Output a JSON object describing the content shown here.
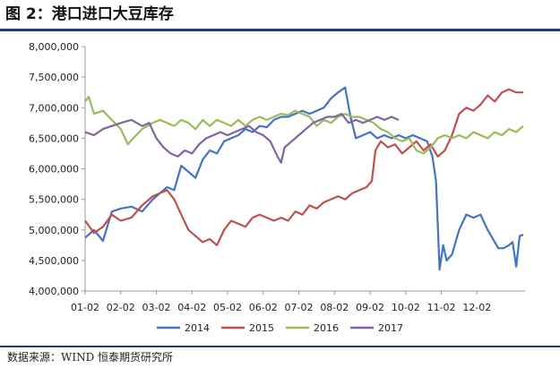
{
  "title": "图 2：港口进口大豆库存",
  "source": "数据来源：WIND  恒泰期货研究所",
  "chart_data": {
    "type": "line",
    "title": "",
    "xlabel": "",
    "ylabel": "",
    "categories": [
      "01-02",
      "02-02",
      "03-02",
      "04-02",
      "05-02",
      "06-02",
      "07-02",
      "08-02",
      "09-02",
      "10-02",
      "11-02",
      "12-02"
    ],
    "ylim": [
      4000000,
      8000000
    ],
    "yticks": [
      "4,000,000",
      "4,500,000",
      "5,000,000",
      "5,500,000",
      "6,000,000",
      "6,500,000",
      "7,000,000",
      "7,500,000",
      "8,000,000"
    ],
    "legend_position": "bottom",
    "grid": false,
    "series": [
      {
        "name": "2014",
        "color": "#4472C4",
        "values": [
          [
            0,
            4870000
          ],
          [
            0.25,
            5000000
          ],
          [
            0.5,
            4820000
          ],
          [
            0.75,
            5300000
          ],
          [
            1.0,
            5350000
          ],
          [
            1.3,
            5380000
          ],
          [
            1.6,
            5300000
          ],
          [
            1.9,
            5500000
          ],
          [
            2.1,
            5600000
          ],
          [
            2.3,
            5700000
          ],
          [
            2.5,
            5650000
          ],
          [
            2.7,
            6050000
          ],
          [
            2.9,
            5950000
          ],
          [
            3.1,
            5850000
          ],
          [
            3.3,
            6150000
          ],
          [
            3.5,
            6300000
          ],
          [
            3.7,
            6250000
          ],
          [
            3.9,
            6450000
          ],
          [
            4.1,
            6500000
          ],
          [
            4.3,
            6550000
          ],
          [
            4.5,
            6650000
          ],
          [
            4.7,
            6600000
          ],
          [
            4.9,
            6700000
          ],
          [
            5.1,
            6680000
          ],
          [
            5.3,
            6800000
          ],
          [
            5.5,
            6850000
          ],
          [
            5.7,
            6850000
          ],
          [
            5.9,
            6900000
          ],
          [
            6.1,
            6950000
          ],
          [
            6.3,
            6900000
          ],
          [
            6.5,
            6950000
          ],
          [
            6.7,
            7000000
          ],
          [
            6.9,
            7150000
          ],
          [
            7.1,
            7250000
          ],
          [
            7.3,
            7330000
          ],
          [
            7.45,
            6850000
          ],
          [
            7.6,
            6500000
          ],
          [
            7.8,
            6550000
          ],
          [
            8.0,
            6600000
          ],
          [
            8.2,
            6500000
          ],
          [
            8.4,
            6550000
          ],
          [
            8.6,
            6500000
          ],
          [
            8.8,
            6550000
          ],
          [
            9.0,
            6500000
          ],
          [
            9.2,
            6550000
          ],
          [
            9.4,
            6500000
          ],
          [
            9.6,
            6450000
          ],
          [
            9.75,
            6200000
          ],
          [
            9.85,
            5800000
          ],
          [
            9.95,
            4350000
          ],
          [
            10.05,
            4750000
          ],
          [
            10.15,
            4500000
          ],
          [
            10.3,
            4600000
          ],
          [
            10.5,
            5000000
          ],
          [
            10.7,
            5250000
          ],
          [
            10.9,
            5200000
          ],
          [
            11.1,
            5250000
          ],
          [
            11.3,
            5000000
          ],
          [
            11.5,
            4800000
          ],
          [
            11.6,
            4700000
          ],
          [
            11.75,
            4700000
          ],
          [
            11.9,
            4750000
          ],
          [
            12.0,
            4800000
          ],
          [
            12.1,
            4400000
          ],
          [
            12.2,
            4900000
          ],
          [
            12.3,
            4920000
          ]
        ]
      },
      {
        "name": "2015",
        "color": "#C0504D",
        "values": [
          [
            0,
            5150000
          ],
          [
            0.25,
            4950000
          ],
          [
            0.5,
            5050000
          ],
          [
            0.75,
            5250000
          ],
          [
            1.0,
            5150000
          ],
          [
            1.3,
            5200000
          ],
          [
            1.6,
            5400000
          ],
          [
            1.9,
            5550000
          ],
          [
            2.1,
            5600000
          ],
          [
            2.3,
            5650000
          ],
          [
            2.5,
            5500000
          ],
          [
            2.7,
            5250000
          ],
          [
            2.9,
            5000000
          ],
          [
            3.1,
            4900000
          ],
          [
            3.3,
            4800000
          ],
          [
            3.5,
            4850000
          ],
          [
            3.7,
            4750000
          ],
          [
            3.9,
            5000000
          ],
          [
            4.1,
            5150000
          ],
          [
            4.3,
            5100000
          ],
          [
            4.5,
            5050000
          ],
          [
            4.7,
            5200000
          ],
          [
            4.9,
            5250000
          ],
          [
            5.1,
            5200000
          ],
          [
            5.3,
            5150000
          ],
          [
            5.5,
            5200000
          ],
          [
            5.7,
            5150000
          ],
          [
            5.9,
            5300000
          ],
          [
            6.1,
            5250000
          ],
          [
            6.3,
            5400000
          ],
          [
            6.5,
            5350000
          ],
          [
            6.7,
            5450000
          ],
          [
            6.9,
            5500000
          ],
          [
            7.1,
            5550000
          ],
          [
            7.3,
            5500000
          ],
          [
            7.5,
            5600000
          ],
          [
            7.7,
            5650000
          ],
          [
            7.9,
            5700000
          ],
          [
            8.05,
            5800000
          ],
          [
            8.15,
            6300000
          ],
          [
            8.3,
            6450000
          ],
          [
            8.5,
            6350000
          ],
          [
            8.7,
            6400000
          ],
          [
            8.9,
            6250000
          ],
          [
            9.1,
            6350000
          ],
          [
            9.3,
            6450000
          ],
          [
            9.5,
            6300000
          ],
          [
            9.7,
            6400000
          ],
          [
            9.9,
            6200000
          ],
          [
            10.1,
            6300000
          ],
          [
            10.3,
            6550000
          ],
          [
            10.5,
            6900000
          ],
          [
            10.7,
            7000000
          ],
          [
            10.9,
            6950000
          ],
          [
            11.1,
            7050000
          ],
          [
            11.3,
            7200000
          ],
          [
            11.5,
            7100000
          ],
          [
            11.7,
            7250000
          ],
          [
            11.9,
            7300000
          ],
          [
            12.1,
            7250000
          ],
          [
            12.3,
            7250000
          ]
        ]
      },
      {
        "name": "2016",
        "color": "#9BBB59",
        "values": [
          [
            0,
            7100000
          ],
          [
            0.1,
            7180000
          ],
          [
            0.25,
            6900000
          ],
          [
            0.5,
            6950000
          ],
          [
            0.75,
            6800000
          ],
          [
            1.0,
            6650000
          ],
          [
            1.2,
            6400000
          ],
          [
            1.35,
            6500000
          ],
          [
            1.6,
            6650000
          ],
          [
            1.9,
            6750000
          ],
          [
            2.1,
            6800000
          ],
          [
            2.3,
            6750000
          ],
          [
            2.5,
            6700000
          ],
          [
            2.7,
            6800000
          ],
          [
            2.9,
            6750000
          ],
          [
            3.1,
            6650000
          ],
          [
            3.3,
            6800000
          ],
          [
            3.5,
            6700000
          ],
          [
            3.7,
            6800000
          ],
          [
            3.9,
            6750000
          ],
          [
            4.1,
            6700000
          ],
          [
            4.3,
            6800000
          ],
          [
            4.5,
            6700000
          ],
          [
            4.7,
            6800000
          ],
          [
            4.9,
            6850000
          ],
          [
            5.1,
            6800000
          ],
          [
            5.3,
            6850000
          ],
          [
            5.5,
            6900000
          ],
          [
            5.7,
            6880000
          ],
          [
            5.9,
            6950000
          ],
          [
            6.1,
            6900000
          ],
          [
            6.3,
            6850000
          ],
          [
            6.5,
            6700000
          ],
          [
            6.7,
            6800000
          ],
          [
            6.9,
            6750000
          ],
          [
            7.1,
            6850000
          ],
          [
            7.3,
            6900000
          ],
          [
            7.5,
            6850000
          ],
          [
            7.7,
            6850000
          ],
          [
            7.9,
            6800000
          ],
          [
            8.1,
            6750000
          ],
          [
            8.3,
            6650000
          ],
          [
            8.5,
            6600000
          ],
          [
            8.7,
            6500000
          ],
          [
            8.9,
            6450000
          ],
          [
            9.1,
            6500000
          ],
          [
            9.3,
            6300000
          ],
          [
            9.5,
            6250000
          ],
          [
            9.7,
            6350000
          ],
          [
            9.9,
            6500000
          ],
          [
            10.1,
            6550000
          ],
          [
            10.3,
            6500000
          ],
          [
            10.5,
            6550000
          ],
          [
            10.7,
            6500000
          ],
          [
            10.9,
            6600000
          ],
          [
            11.1,
            6550000
          ],
          [
            11.3,
            6500000
          ],
          [
            11.5,
            6600000
          ],
          [
            11.7,
            6550000
          ],
          [
            11.9,
            6650000
          ],
          [
            12.1,
            6600000
          ],
          [
            12.3,
            6700000
          ]
        ]
      },
      {
        "name": "2017",
        "color": "#8064A2",
        "values": [
          [
            0,
            6600000
          ],
          [
            0.25,
            6550000
          ],
          [
            0.5,
            6650000
          ],
          [
            0.75,
            6700000
          ],
          [
            1.0,
            6750000
          ],
          [
            1.3,
            6800000
          ],
          [
            1.6,
            6700000
          ],
          [
            1.8,
            6750000
          ],
          [
            2.0,
            6500000
          ],
          [
            2.2,
            6350000
          ],
          [
            2.4,
            6250000
          ],
          [
            2.6,
            6200000
          ],
          [
            2.8,
            6300000
          ],
          [
            3.0,
            6250000
          ],
          [
            3.2,
            6400000
          ],
          [
            3.4,
            6500000
          ],
          [
            3.6,
            6550000
          ],
          [
            3.8,
            6600000
          ],
          [
            4.0,
            6550000
          ],
          [
            4.2,
            6600000
          ],
          [
            4.4,
            6650000
          ],
          [
            4.6,
            6700000
          ],
          [
            4.8,
            6600000
          ],
          [
            5.0,
            6550000
          ],
          [
            5.2,
            6450000
          ],
          [
            5.4,
            6200000
          ],
          [
            5.5,
            6100000
          ],
          [
            5.6,
            6350000
          ],
          [
            5.8,
            6450000
          ],
          [
            6.0,
            6550000
          ],
          [
            6.2,
            6650000
          ],
          [
            6.4,
            6750000
          ],
          [
            6.6,
            6800000
          ],
          [
            6.8,
            6850000
          ],
          [
            7.0,
            6850000
          ],
          [
            7.2,
            6900000
          ],
          [
            7.4,
            6750000
          ],
          [
            7.6,
            6800000
          ],
          [
            7.8,
            6750000
          ],
          [
            8.0,
            6800000
          ],
          [
            8.2,
            6850000
          ],
          [
            8.4,
            6800000
          ],
          [
            8.6,
            6850000
          ],
          [
            8.8,
            6800000
          ]
        ]
      }
    ]
  }
}
